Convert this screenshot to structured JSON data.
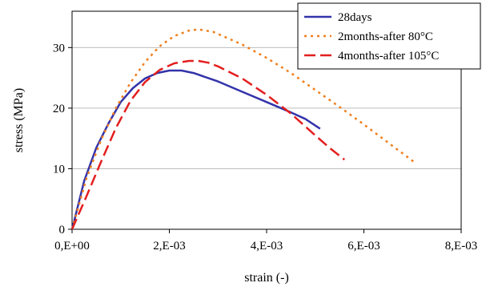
{
  "chart_data": {
    "type": "line",
    "xlabel": "strain (-)",
    "ylabel": "stress (MPa)",
    "xlim": [
      0,
      0.008
    ],
    "ylim": [
      0,
      36
    ],
    "x_ticks": [
      {
        "value": 0,
        "label": "0,E+00"
      },
      {
        "value": 0.002,
        "label": "2,E-03"
      },
      {
        "value": 0.004,
        "label": "4,E-03"
      },
      {
        "value": 0.006,
        "label": "6,E-03"
      },
      {
        "value": 0.008,
        "label": "8,E-03"
      }
    ],
    "y_ticks": [
      {
        "value": 0,
        "label": "0"
      },
      {
        "value": 10,
        "label": "10"
      },
      {
        "value": 20,
        "label": "20"
      },
      {
        "value": 30,
        "label": "30"
      }
    ],
    "grid": "horizontal",
    "legend_position": "top-right",
    "series": [
      {
        "name": "28days",
        "color": "#3333aa",
        "style": "solid",
        "x": [
          0,
          0.00025,
          0.0005,
          0.00075,
          0.001,
          0.00125,
          0.0015,
          0.00175,
          0.002,
          0.00225,
          0.0025,
          0.003,
          0.0035,
          0.004,
          0.0045,
          0.0048,
          0.0051
        ],
        "y": [
          0,
          8,
          13.5,
          17.5,
          21,
          23.3,
          24.9,
          25.8,
          26.2,
          26.2,
          25.8,
          24.4,
          22.7,
          21,
          19.3,
          18.2,
          16.6
        ]
      },
      {
        "name": "2months-after 80°C",
        "color": "#f07f1e",
        "style": "dotted",
        "x": [
          0,
          0.0003,
          0.0006,
          0.0009,
          0.0012,
          0.0015,
          0.0018,
          0.0021,
          0.0024,
          0.0026,
          0.0029,
          0.0035,
          0.004,
          0.0045,
          0.005,
          0.0055,
          0.006,
          0.0065,
          0.00705
        ],
        "y": [
          0,
          8.5,
          14.8,
          20,
          24.2,
          27.6,
          30.2,
          31.9,
          32.8,
          33,
          32.6,
          30.5,
          28.3,
          25.8,
          23,
          20.2,
          17.3,
          14.3,
          11
        ]
      },
      {
        "name": "4months-after 105°C",
        "color": "#e31f1f",
        "style": "dashed",
        "x": [
          0,
          0.0003,
          0.0006,
          0.0009,
          0.0012,
          0.0015,
          0.0018,
          0.0021,
          0.0024,
          0.0026,
          0.0028,
          0.003,
          0.0035,
          0.004,
          0.0045,
          0.005,
          0.0053,
          0.0056
        ],
        "y": [
          0,
          5.5,
          11.2,
          16.7,
          21.2,
          24.3,
          26.3,
          27.4,
          27.8,
          27.8,
          27.5,
          26.9,
          24.9,
          22.2,
          19.1,
          15.5,
          13.4,
          11.5
        ]
      }
    ]
  }
}
